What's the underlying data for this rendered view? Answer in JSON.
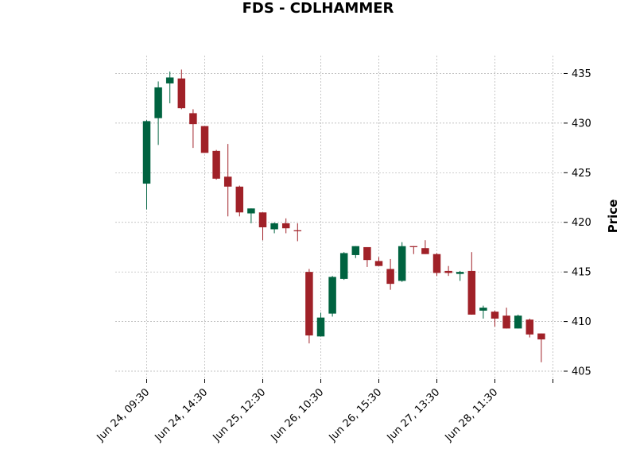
{
  "chart_data": {
    "type": "candlestick",
    "title": "FDS - CDLHAMMER",
    "ylabel": "Price",
    "xlabel": "",
    "ylim": [
      404.2,
      436.8
    ],
    "yticks": [
      405,
      410,
      415,
      420,
      425,
      430,
      435
    ],
    "grid": true,
    "xtick_labels": [
      "Jun 24, 09:30",
      "Jun 24, 14:30",
      "Jun 25, 12:30",
      "Jun 26, 10:30",
      "Jun 26, 15:30",
      "Jun 27, 13:30",
      "Jun 28, 11:30"
    ],
    "xtick_positions": [
      0,
      5,
      10,
      15,
      20,
      25,
      30
    ],
    "colors": {
      "up": "#006340",
      "down": "#a02128",
      "grid": "#b0b0b0"
    },
    "candles": [
      {
        "o": 423.9,
        "h": 430.3,
        "l": 421.3,
        "c": 430.2
      },
      {
        "o": 430.5,
        "h": 434.2,
        "l": 427.8,
        "c": 433.6
      },
      {
        "o": 434.0,
        "h": 435.2,
        "l": 432.0,
        "c": 434.6
      },
      {
        "o": 434.5,
        "h": 435.4,
        "l": 431.4,
        "c": 431.5
      },
      {
        "o": 431.0,
        "h": 431.4,
        "l": 427.5,
        "c": 429.9
      },
      {
        "o": 429.7,
        "h": 429.7,
        "l": 427.0,
        "c": 427.0
      },
      {
        "o": 427.2,
        "h": 427.3,
        "l": 424.3,
        "c": 424.4
      },
      {
        "o": 424.6,
        "h": 427.9,
        "l": 420.6,
        "c": 423.6
      },
      {
        "o": 423.6,
        "h": 423.7,
        "l": 420.6,
        "c": 421.0
      },
      {
        "o": 420.9,
        "h": 421.4,
        "l": 419.9,
        "c": 421.4
      },
      {
        "o": 421.0,
        "h": 421.0,
        "l": 418.2,
        "c": 419.5
      },
      {
        "o": 419.3,
        "h": 420.0,
        "l": 418.9,
        "c": 419.9
      },
      {
        "o": 419.9,
        "h": 420.4,
        "l": 418.9,
        "c": 419.4
      },
      {
        "o": 419.2,
        "h": 419.9,
        "l": 418.1,
        "c": 419.1
      },
      {
        "o": 415.0,
        "h": 415.3,
        "l": 407.8,
        "c": 408.6
      },
      {
        "o": 408.5,
        "h": 410.9,
        "l": 408.5,
        "c": 410.4
      },
      {
        "o": 410.8,
        "h": 414.6,
        "l": 410.5,
        "c": 414.5
      },
      {
        "o": 414.3,
        "h": 417.0,
        "l": 414.2,
        "c": 416.9
      },
      {
        "o": 416.7,
        "h": 417.6,
        "l": 416.4,
        "c": 417.6
      },
      {
        "o": 417.5,
        "h": 417.5,
        "l": 415.5,
        "c": 416.2
      },
      {
        "o": 416.1,
        "h": 416.5,
        "l": 415.6,
        "c": 415.6
      },
      {
        "o": 415.3,
        "h": 416.3,
        "l": 413.2,
        "c": 413.8
      },
      {
        "o": 414.1,
        "h": 418.0,
        "l": 414.0,
        "c": 417.6
      },
      {
        "o": 417.6,
        "h": 417.6,
        "l": 416.8,
        "c": 417.5
      },
      {
        "o": 417.4,
        "h": 418.2,
        "l": 416.8,
        "c": 416.8
      },
      {
        "o": 416.8,
        "h": 416.9,
        "l": 414.6,
        "c": 414.9
      },
      {
        "o": 415.1,
        "h": 415.6,
        "l": 414.6,
        "c": 414.9
      },
      {
        "o": 414.8,
        "h": 415.1,
        "l": 414.1,
        "c": 415.0
      },
      {
        "o": 415.1,
        "h": 417.0,
        "l": 410.7,
        "c": 410.7
      },
      {
        "o": 411.1,
        "h": 411.6,
        "l": 410.3,
        "c": 411.4
      },
      {
        "o": 411.0,
        "h": 411.1,
        "l": 409.5,
        "c": 410.3
      },
      {
        "o": 410.6,
        "h": 411.4,
        "l": 409.3,
        "c": 409.3
      },
      {
        "o": 409.3,
        "h": 410.7,
        "l": 409.3,
        "c": 410.6
      },
      {
        "o": 410.2,
        "h": 410.3,
        "l": 408.4,
        "c": 408.7
      },
      {
        "o": 408.8,
        "h": 408.8,
        "l": 405.9,
        "c": 408.2
      }
    ]
  }
}
